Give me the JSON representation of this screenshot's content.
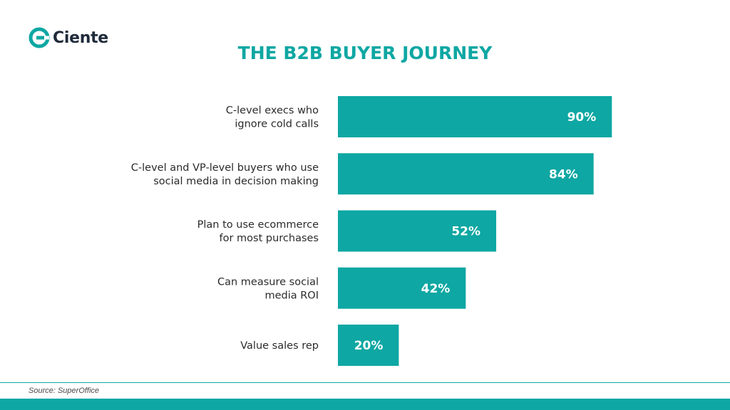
{
  "brand": {
    "name": "Ciente",
    "accent": "#0ea7a3"
  },
  "source": "Source: SuperOffice",
  "chart_data": {
    "type": "bar",
    "orientation": "horizontal",
    "title": "THE B2B BUYER JOURNEY",
    "categories": [
      [
        "C-level execs who",
        "ignore cold calls"
      ],
      [
        "C-level and VP-level buyers who use",
        "social media in decision making"
      ],
      [
        "Plan to use ecommerce",
        "for most purchases"
      ],
      [
        "Can measure social",
        "media ROI"
      ],
      [
        "Value sales rep"
      ]
    ],
    "values": [
      90,
      84,
      52,
      42,
      20
    ],
    "value_labels": [
      "90%",
      "84%",
      "52%",
      "42%",
      "20%"
    ],
    "unit": "%",
    "xlim": [
      0,
      100
    ],
    "grid": false,
    "legend": "none",
    "bar_color": "#0ea7a3",
    "label_color": "#ffffff"
  }
}
